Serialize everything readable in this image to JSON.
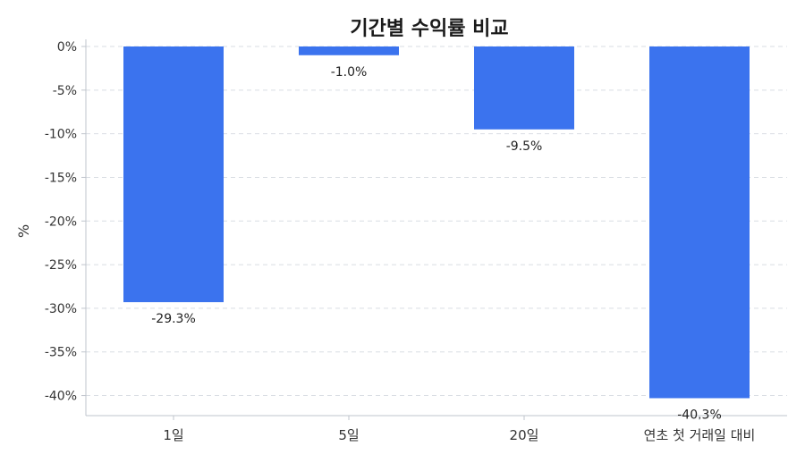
{
  "chart_data": {
    "type": "bar",
    "title": "기간별 수익률 비교",
    "ylabel": "%",
    "xlabel": "",
    "categories": [
      "1일",
      "5일",
      "20일",
      "연초 첫 거래일 대비"
    ],
    "values": [
      -29.3,
      -1.0,
      -9.5,
      -40.3
    ],
    "data_labels": [
      "-29.3%",
      "-1.0%",
      "-9.5%",
      "-40.3%"
    ],
    "ylim": [
      -42.3,
      0
    ],
    "yticks": [
      0,
      -5,
      -10,
      -15,
      -20,
      -25,
      -30,
      -35,
      -40
    ],
    "ytick_labels": [
      "0%",
      "-5%",
      "-10%",
      "-15%",
      "-20%",
      "-25%",
      "-30%",
      "-35%",
      "-40%"
    ],
    "grid": true,
    "legend": "none",
    "colors": {
      "bar": "#3b73ee",
      "grid": "#d9dde3",
      "axis": "#bfc4cc",
      "text": "#333333"
    }
  }
}
